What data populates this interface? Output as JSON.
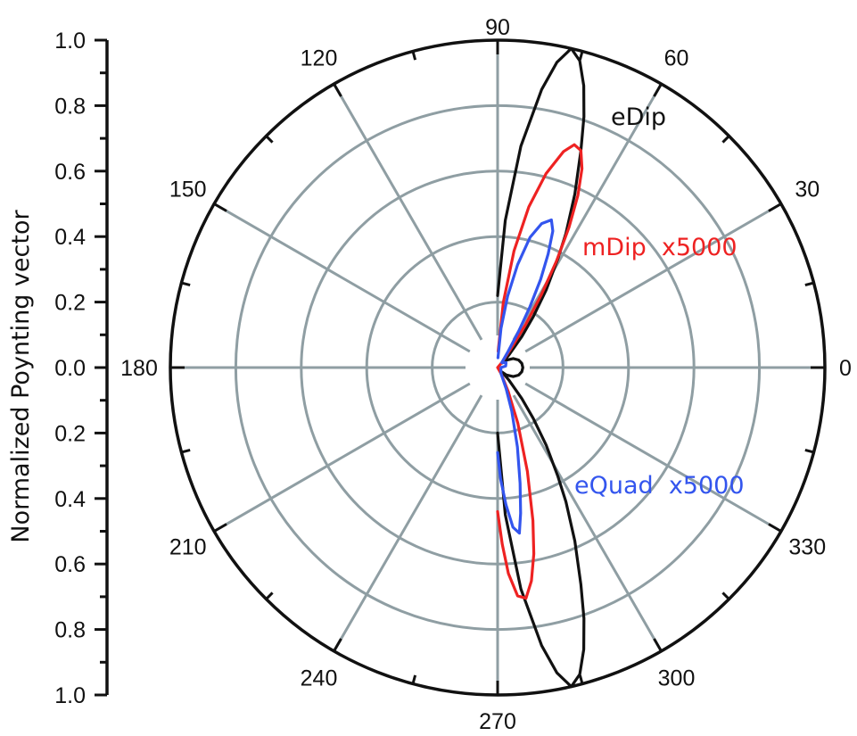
{
  "chart_data": {
    "type": "polar",
    "title": "",
    "ylabel": "Normalized Poynting vector",
    "radial_axis": {
      "range": [
        0,
        1.0
      ],
      "tick_labels_upper": [
        "1.0",
        "0.8",
        "0.6",
        "0.4",
        "0.2",
        "0.0"
      ],
      "tick_labels_lower": [
        "0.2",
        "0.4",
        "0.6",
        "0.8",
        "1.0"
      ],
      "ticks": [
        1.0,
        0.8,
        0.6,
        0.4,
        0.2,
        0.0,
        0.2,
        0.4,
        0.6,
        0.8,
        1.0
      ],
      "grid_rings": [
        0.2,
        0.4,
        0.6,
        0.8,
        1.0
      ]
    },
    "angular_axis": {
      "unit": "degrees",
      "major_ticks": [
        0,
        30,
        60,
        90,
        120,
        150,
        180,
        210,
        240,
        270,
        300,
        330
      ],
      "tick_labels": [
        "0",
        "30",
        "60",
        "90",
        "120",
        "150",
        "180",
        "210",
        "240",
        "270",
        "300",
        "330"
      ],
      "minor_step": 15,
      "grid": true
    },
    "series": [
      {
        "name": "eDip",
        "label": "eDip",
        "color": "#111111",
        "points": [
          [
            90,
            0.22
          ],
          [
            87,
            0.45
          ],
          [
            84,
            0.68
          ],
          [
            81,
            0.86
          ],
          [
            79,
            0.95
          ],
          [
            77,
            1.0
          ],
          [
            75,
            0.97
          ],
          [
            73,
            0.9
          ],
          [
            71,
            0.81
          ],
          [
            69,
            0.71
          ],
          [
            66,
            0.58
          ],
          [
            63,
            0.46
          ],
          [
            61,
            0.38
          ],
          [
            58,
            0.28
          ],
          [
            55,
            0.19
          ],
          [
            52,
            0.12
          ],
          [
            48,
            0.05
          ],
          [
            45,
            0.02
          ],
          [
            40,
            0.035
          ],
          [
            30,
            0.055
          ],
          [
            20,
            0.068
          ],
          [
            10,
            0.075
          ],
          [
            0,
            0.077
          ],
          [
            -10,
            0.075
          ],
          [
            -20,
            0.068
          ],
          [
            -30,
            0.055
          ],
          [
            -40,
            0.035
          ],
          [
            -45,
            0.02
          ],
          [
            -48,
            0.05
          ],
          [
            -52,
            0.12
          ],
          [
            -55,
            0.19
          ],
          [
            -58,
            0.28
          ],
          [
            -61,
            0.38
          ],
          [
            -63,
            0.46
          ],
          [
            -66,
            0.58
          ],
          [
            -69,
            0.71
          ],
          [
            -71,
            0.81
          ],
          [
            -73,
            0.9
          ],
          [
            -75,
            0.97
          ],
          [
            -77,
            1.0
          ],
          [
            -79,
            0.95
          ],
          [
            -81,
            0.86
          ],
          [
            -84,
            0.68
          ],
          [
            -87,
            0.45
          ],
          [
            -90,
            0.2
          ]
        ]
      },
      {
        "name": "mDip x5000",
        "label": "mDip  x5000",
        "color": "#ee2222",
        "points": [
          [
            88,
            0.05
          ],
          [
            85,
            0.2
          ],
          [
            82,
            0.36
          ],
          [
            79,
            0.5
          ],
          [
            76,
            0.61
          ],
          [
            73,
            0.69
          ],
          [
            71,
            0.72
          ],
          [
            69,
            0.71
          ],
          [
            67,
            0.66
          ],
          [
            65,
            0.58
          ],
          [
            63,
            0.48
          ],
          [
            61,
            0.37
          ],
          [
            59,
            0.26
          ],
          [
            57,
            0.16
          ],
          [
            55,
            0.08
          ],
          [
            50,
            0.02
          ],
          [
            0,
            0.0
          ],
          [
            -60,
            0.02
          ],
          [
            -66,
            0.08
          ],
          [
            -70,
            0.18
          ],
          [
            -74,
            0.33
          ],
          [
            -77,
            0.48
          ],
          [
            -79,
            0.58
          ],
          [
            -81,
            0.66
          ],
          [
            -83,
            0.71
          ],
          [
            -85,
            0.7
          ],
          [
            -87,
            0.63
          ],
          [
            -88.5,
            0.54
          ],
          [
            -90,
            0.44
          ]
        ]
      },
      {
        "name": "eQuad x5000",
        "label": "eQuad  x5000",
        "color": "#3355ee",
        "points": [
          [
            88,
            0.03
          ],
          [
            85,
            0.12
          ],
          [
            82,
            0.22
          ],
          [
            79,
            0.32
          ],
          [
            76,
            0.41
          ],
          [
            73,
            0.46
          ],
          [
            70,
            0.48
          ],
          [
            68,
            0.45
          ],
          [
            66,
            0.38
          ],
          [
            64,
            0.3
          ],
          [
            62,
            0.21
          ],
          [
            60,
            0.13
          ],
          [
            57,
            0.06
          ],
          [
            50,
            0.02
          ],
          [
            30,
            0.03
          ],
          [
            10,
            0.025
          ],
          [
            0,
            0.01
          ],
          [
            -60,
            0.02
          ],
          [
            -68,
            0.07
          ],
          [
            -72,
            0.14
          ],
          [
            -76,
            0.25
          ],
          [
            -79,
            0.36
          ],
          [
            -81,
            0.45
          ],
          [
            -82.5,
            0.51
          ],
          [
            -84.5,
            0.49
          ],
          [
            -86.5,
            0.42
          ],
          [
            -88.5,
            0.34
          ],
          [
            -90,
            0.26
          ]
        ]
      }
    ],
    "annotations": [
      {
        "text": "eDip",
        "color": "#111111"
      },
      {
        "text": "mDip  x5000",
        "color": "#ee2222"
      },
      {
        "text": "eQuad  x5000",
        "color": "#3355ee"
      }
    ],
    "colors": {
      "grid": "#8f9ea3",
      "frame": "#111111"
    }
  }
}
